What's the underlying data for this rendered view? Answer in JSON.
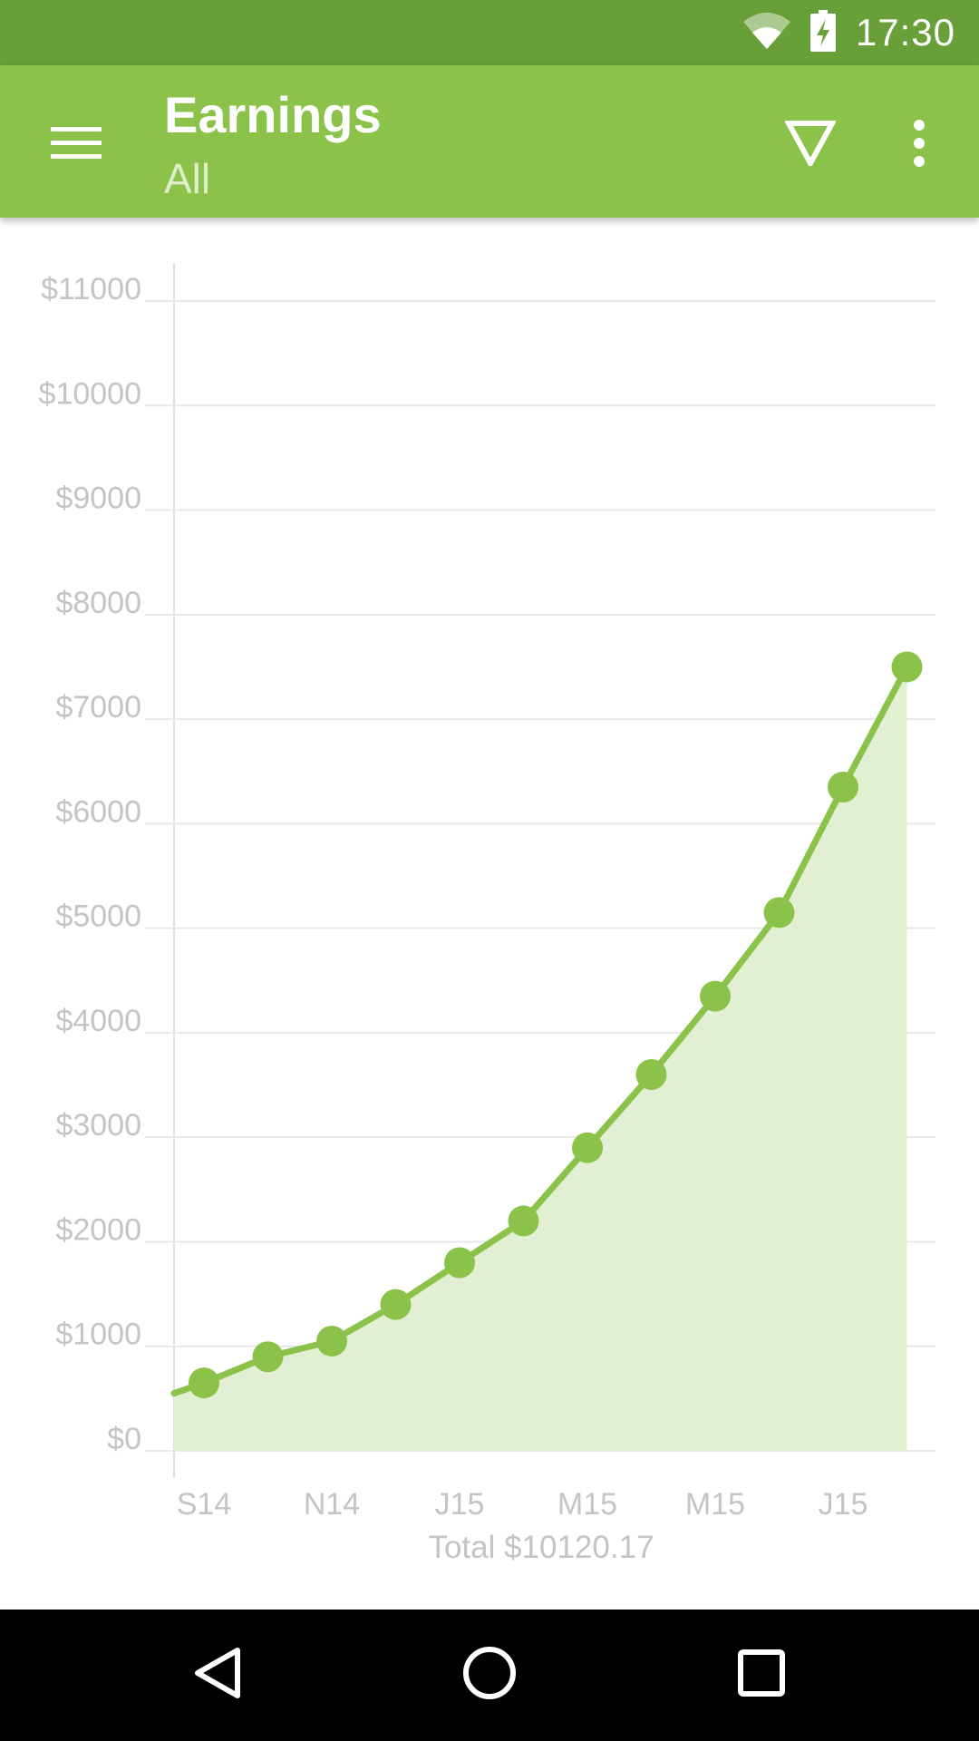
{
  "status_bar": {
    "time": "17:30",
    "icons": [
      "wifi-icon",
      "battery-charging-icon"
    ]
  },
  "app_bar": {
    "title": "Earnings",
    "subtitle": "All",
    "icons": [
      "menu-icon",
      "filter-icon",
      "more-vert-icon"
    ],
    "color": "#8bc34a",
    "status_color": "#689f38"
  },
  "chart_data": {
    "type": "area",
    "title": "",
    "xlabel": "",
    "ylabel": "",
    "x_tick_labels": [
      "S14",
      "N14",
      "J15",
      "M15",
      "M15",
      "J15"
    ],
    "x_tick_index": [
      0,
      2,
      4,
      6,
      8,
      10
    ],
    "y_tick_labels": [
      "$0",
      "$1000",
      "$2000",
      "$3000",
      "$4000",
      "$5000",
      "$6000",
      "$7000",
      "$8000",
      "$9000",
      "$10000",
      "$11000"
    ],
    "ylim": [
      0,
      11000
    ],
    "grid": true,
    "series": [
      {
        "values": [
          650,
          900,
          1050,
          1400,
          1800,
          2200,
          2900,
          3600,
          4350,
          5150,
          6350,
          7500
        ],
        "start_value": 550,
        "color": "#8bc34a",
        "fill": "#e2efd2"
      }
    ],
    "total_label": "Total $10120.17"
  },
  "nav_bar": {
    "icons": [
      "back-icon",
      "home-icon",
      "recents-icon"
    ]
  }
}
